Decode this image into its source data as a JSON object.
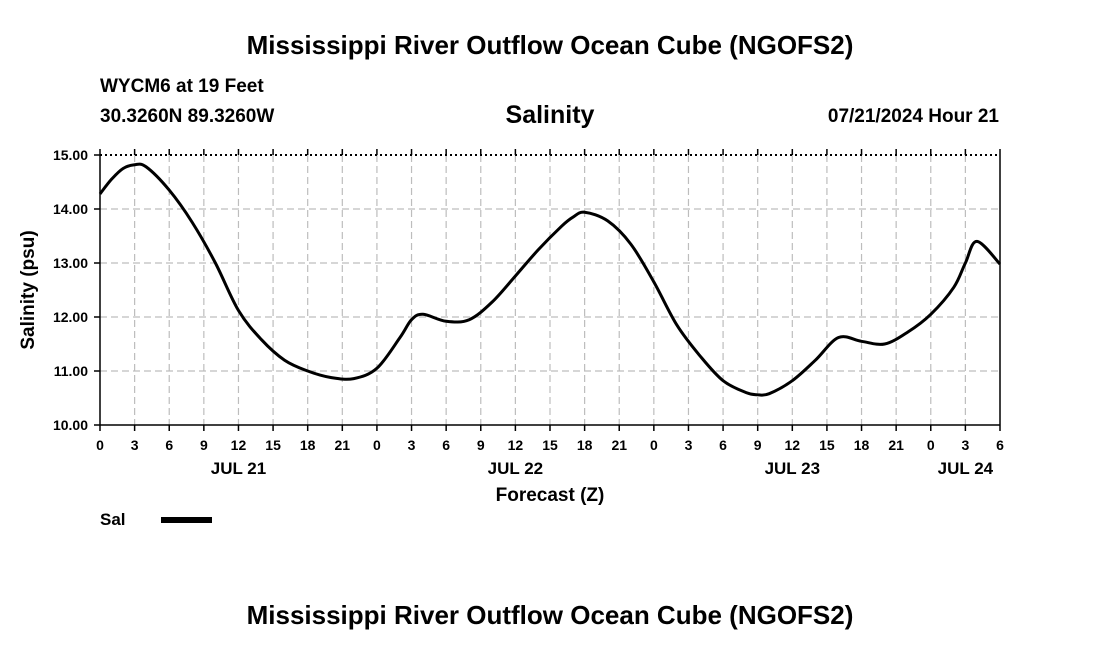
{
  "header": {
    "title": "Mississippi River Outflow Ocean Cube (NGOFS2)",
    "station": "WYCM6 at 19 Feet",
    "coordinates": "30.3260N  89.3260W",
    "chart_title": "Salinity",
    "datetime": "07/21/2024 Hour 21"
  },
  "legend": {
    "label": "Sal"
  },
  "footer": {
    "title": "Mississippi River Outflow Ocean Cube (NGOFS2)"
  },
  "chart_data": {
    "type": "line",
    "title": "Salinity",
    "xlabel": "Forecast (Z)",
    "ylabel": "Salinity (psu)",
    "ylim": [
      10.0,
      15.0
    ],
    "yticks": [
      "10.00",
      "11.00",
      "12.00",
      "13.00",
      "14.00",
      "15.00"
    ],
    "xlim_hours": [
      0,
      78
    ],
    "xtick_labels": [
      "0",
      "3",
      "6",
      "9",
      "12",
      "15",
      "18",
      "21",
      "0",
      "3",
      "6",
      "9",
      "12",
      "15",
      "18",
      "21",
      "0",
      "3",
      "6",
      "9",
      "12",
      "15",
      "18",
      "21",
      "0",
      "3",
      "6"
    ],
    "day_labels": [
      {
        "label": "JUL 21",
        "hour": 12
      },
      {
        "label": "JUL 22",
        "hour": 36
      },
      {
        "label": "JUL 23",
        "hour": 60
      },
      {
        "label": "JUL 24",
        "hour": 75
      }
    ],
    "grid": true,
    "series": [
      {
        "name": "Sal",
        "color": "#000000",
        "x": [
          0,
          1,
          2,
          3,
          4,
          6,
          8,
          10,
          12,
          14,
          16,
          18,
          20,
          22,
          24,
          26,
          27,
          28,
          30,
          32,
          34,
          36,
          38,
          40,
          41,
          42,
          44,
          46,
          48,
          50,
          52,
          54,
          56,
          57,
          58,
          60,
          62,
          64,
          66,
          68,
          70,
          72,
          74,
          75,
          76,
          78
        ],
        "values": [
          14.28,
          14.55,
          14.75,
          14.82,
          14.78,
          14.35,
          13.75,
          13.0,
          12.12,
          11.58,
          11.2,
          11.0,
          10.88,
          10.86,
          11.05,
          11.62,
          11.95,
          12.05,
          11.92,
          11.95,
          12.28,
          12.76,
          13.25,
          13.68,
          13.85,
          13.94,
          13.78,
          13.35,
          12.65,
          11.85,
          11.28,
          10.82,
          10.6,
          10.56,
          10.58,
          10.82,
          11.2,
          11.62,
          11.55,
          11.5,
          11.72,
          12.05,
          12.55,
          13.0,
          13.4,
          12.98
        ]
      }
    ]
  }
}
